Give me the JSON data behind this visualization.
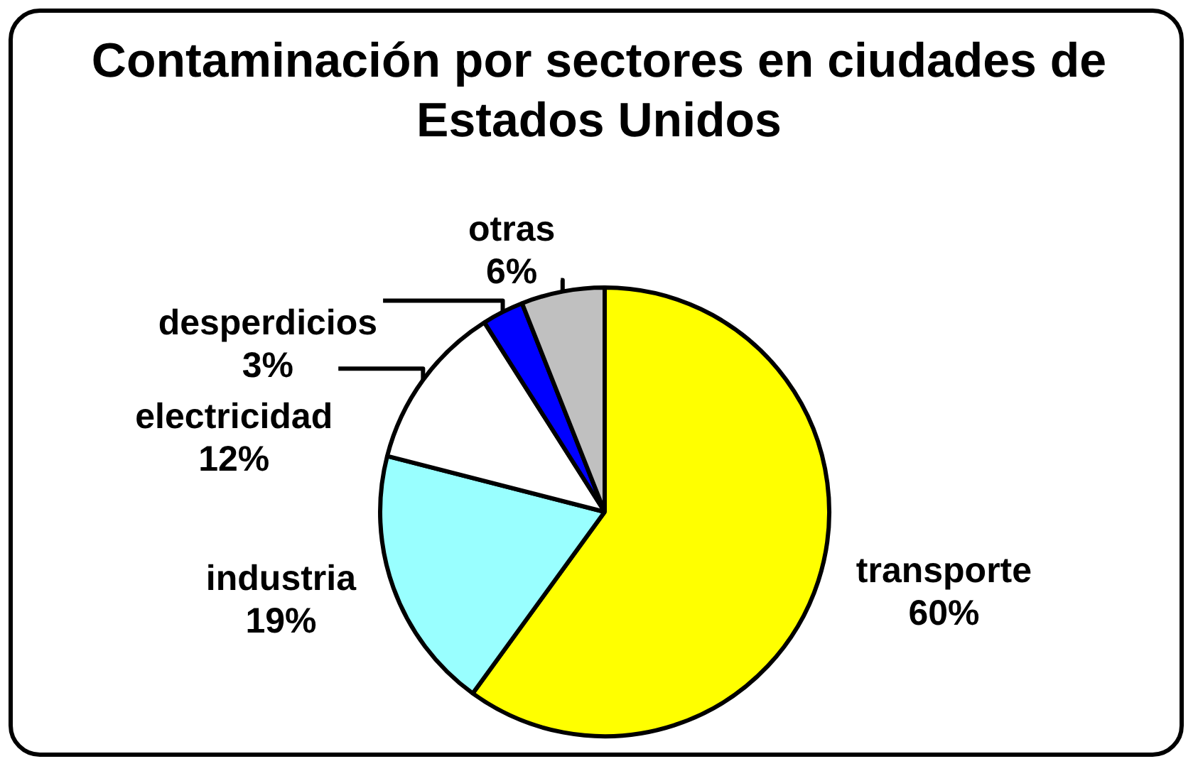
{
  "chart_data": {
    "type": "pie",
    "title": "Contaminación por sectores en ciudades de Estados Unidos",
    "categories": [
      "transporte",
      "industria",
      "electricidad",
      "desperdicios",
      "otras"
    ],
    "values": [
      60,
      19,
      12,
      3,
      6
    ],
    "colors": [
      "#ffff00",
      "#99ffff",
      "#ffffff",
      "#0000ff",
      "#c0c0c0"
    ],
    "value_labels": [
      "60%",
      "19%",
      "12%",
      "3%",
      "6%"
    ],
    "legend": false
  }
}
